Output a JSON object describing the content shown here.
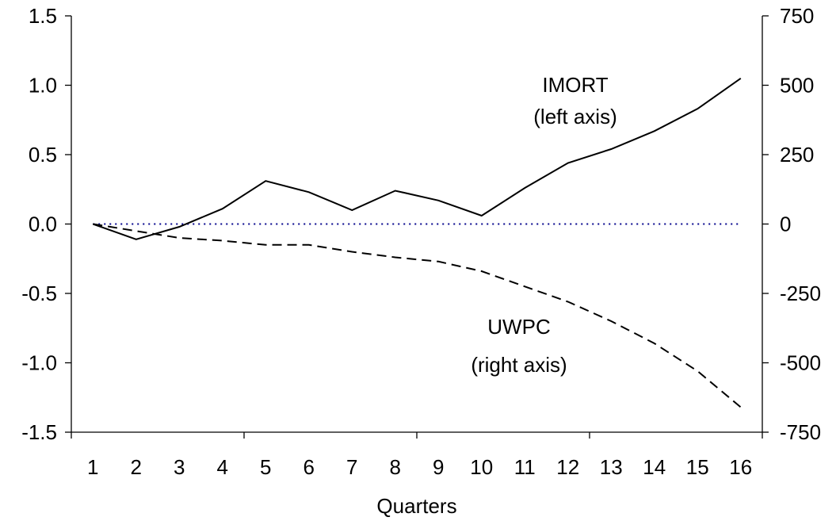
{
  "chart_data": {
    "type": "line",
    "xlabel": "Quarters",
    "categories": [
      "1",
      "2",
      "3",
      "4",
      "5",
      "6",
      "7",
      "8",
      "9",
      "10",
      "11",
      "12",
      "13",
      "14",
      "15",
      "16"
    ],
    "left_axis": {
      "ylim": [
        -1.5,
        1.5
      ],
      "ticks": [
        "1.5",
        "1.0",
        "0.5",
        "0.0",
        "-0.5",
        "-1.0",
        "-1.5"
      ]
    },
    "right_axis": {
      "ylim": [
        -750,
        750
      ],
      "ticks": [
        "750",
        "500",
        "250",
        "0",
        "-250",
        "-500",
        "-750"
      ]
    },
    "grid": false,
    "series": [
      {
        "name": "IMORT",
        "axis": "left",
        "style": "solid",
        "color": "#000000",
        "values": [
          0.0,
          -0.11,
          -0.02,
          0.11,
          0.31,
          0.23,
          0.1,
          0.24,
          0.17,
          0.06,
          0.26,
          0.44,
          0.54,
          0.67,
          0.83,
          1.05
        ]
      },
      {
        "name": "UWPC",
        "axis": "right",
        "style": "dashed",
        "color": "#000000",
        "values": [
          0,
          -25,
          -50,
          -60,
          -75,
          -75,
          -100,
          -120,
          -135,
          -170,
          -225,
          -280,
          -350,
          -430,
          -530,
          -660
        ]
      }
    ],
    "zero_line": {
      "style": "dotted",
      "color": "#00008b"
    },
    "annotations": [
      {
        "line1": "IMORT",
        "line2": "(left axis)"
      },
      {
        "line1": "UWPC",
        "line2": "(right axis)"
      }
    ]
  }
}
